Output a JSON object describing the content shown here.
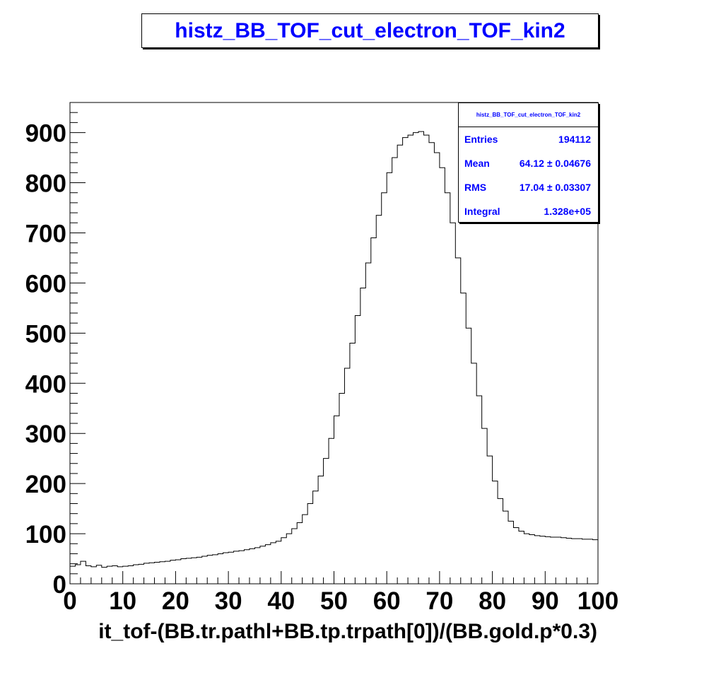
{
  "title": "histz_BB_TOF_cut_electron_TOF_kin2",
  "stats_box": {
    "name": "histz_BB_TOF_cut_electron_TOF_kin2",
    "rows": [
      {
        "label": "Entries",
        "value": "194112"
      },
      {
        "label": "Mean",
        "value": "64.12 ± 0.04676"
      },
      {
        "label": "RMS",
        "value": "17.04 ± 0.03307"
      },
      {
        "label": "Integral",
        "value": "1.328e+05"
      }
    ]
  },
  "chart_data": {
    "type": "histogram",
    "title": "histz_BB_TOF_cut_electron_TOF_kin2",
    "xlabel": "it_tof-(BB.tr.pathl+BB.tp.trpath[0])/(BB.gold.p*0.3)",
    "ylabel": "",
    "xlim": [
      0,
      100
    ],
    "ylim": [
      0,
      960
    ],
    "x_ticks": [
      "0",
      "10",
      "20",
      "30",
      "40",
      "50",
      "60",
      "70",
      "80",
      "90",
      "100"
    ],
    "y_ticks": [
      "0",
      "100",
      "200",
      "300",
      "400",
      "500",
      "600",
      "700",
      "800",
      "900"
    ],
    "grid": false,
    "line_color": "#000000",
    "bin_width": 1,
    "bin_centers": [
      0.5,
      1.5,
      2.5,
      3.5,
      4.5,
      5.5,
      6.5,
      7.5,
      8.5,
      9.5,
      10.5,
      11.5,
      12.5,
      13.5,
      14.5,
      15.5,
      16.5,
      17.5,
      18.5,
      19.5,
      20.5,
      21.5,
      22.5,
      23.5,
      24.5,
      25.5,
      26.5,
      27.5,
      28.5,
      29.5,
      30.5,
      31.5,
      32.5,
      33.5,
      34.5,
      35.5,
      36.5,
      37.5,
      38.5,
      39.5,
      40.5,
      41.5,
      42.5,
      43.5,
      44.5,
      45.5,
      46.5,
      47.5,
      48.5,
      49.5,
      50.5,
      51.5,
      52.5,
      53.5,
      54.5,
      55.5,
      56.5,
      57.5,
      58.5,
      59.5,
      60.5,
      61.5,
      62.5,
      63.5,
      64.5,
      65.5,
      66.5,
      67.5,
      68.5,
      69.5,
      70.5,
      71.5,
      72.5,
      73.5,
      74.5,
      75.5,
      76.5,
      77.5,
      78.5,
      79.5,
      80.5,
      81.5,
      82.5,
      83.5,
      84.5,
      85.5,
      86.5,
      87.5,
      88.5,
      89.5,
      90.5,
      91.5,
      92.5,
      93.5,
      94.5,
      95.5,
      96.5,
      97.5,
      98.5,
      99.5
    ],
    "counts": [
      35,
      38,
      45,
      36,
      34,
      37,
      33,
      35,
      36,
      34,
      35,
      36,
      38,
      39,
      41,
      42,
      43,
      44,
      45,
      47,
      48,
      50,
      51,
      52,
      53,
      55,
      57,
      58,
      60,
      62,
      63,
      65,
      66,
      68,
      70,
      72,
      75,
      78,
      82,
      85,
      92,
      100,
      110,
      122,
      138,
      160,
      185,
      215,
      250,
      290,
      335,
      380,
      430,
      480,
      535,
      590,
      640,
      690,
      735,
      780,
      820,
      850,
      875,
      890,
      895,
      900,
      902,
      895,
      880,
      860,
      830,
      780,
      720,
      650,
      580,
      510,
      440,
      375,
      310,
      255,
      205,
      170,
      145,
      125,
      112,
      105,
      100,
      98,
      96,
      95,
      94,
      93,
      93,
      92,
      91,
      90,
      90,
      89,
      89,
      88
    ]
  }
}
